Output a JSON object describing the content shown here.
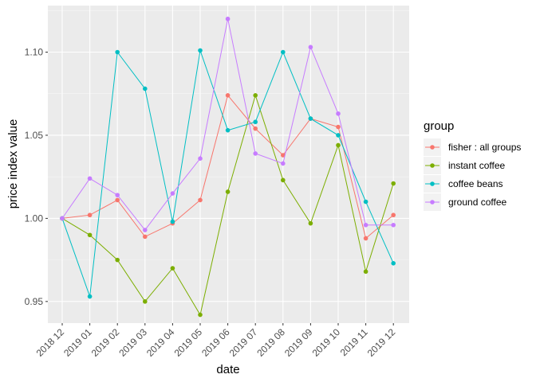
{
  "chart_data": {
    "type": "line",
    "xlabel": "date",
    "ylabel": "price index value",
    "x": [
      "2018 12",
      "2019 01",
      "2019 02",
      "2019 03",
      "2019 04",
      "2019 05",
      "2019 06",
      "2019 07",
      "2019 08",
      "2019 09",
      "2019 10",
      "2019 11",
      "2019 12"
    ],
    "yticks": [
      "0.95",
      "1.00",
      "1.05",
      "1.10"
    ],
    "ylim": [
      0.937,
      1.128
    ],
    "grid": true,
    "legend": {
      "title": "group",
      "position": "right"
    },
    "series": [
      {
        "name": "fisher : all groups",
        "color": "#F8766D",
        "values": [
          1.0,
          1.002,
          1.011,
          0.989,
          0.997,
          1.011,
          1.074,
          1.054,
          1.038,
          1.06,
          1.055,
          0.988,
          1.002
        ]
      },
      {
        "name": "instant coffee",
        "color": "#7CAE00",
        "values": [
          1.0,
          0.99,
          0.975,
          0.95,
          0.97,
          0.942,
          1.016,
          1.074,
          1.023,
          0.997,
          1.044,
          0.968,
          1.021
        ]
      },
      {
        "name": "coffee beans",
        "color": "#00BFC4",
        "values": [
          1.0,
          0.953,
          1.1,
          1.078,
          0.998,
          1.101,
          1.053,
          1.058,
          1.1,
          1.06,
          1.05,
          1.01,
          0.973
        ]
      },
      {
        "name": "ground coffee",
        "color": "#C77CFF",
        "values": [
          1.0,
          1.024,
          1.014,
          0.993,
          1.015,
          1.036,
          1.12,
          1.039,
          1.033,
          1.103,
          1.063,
          0.996,
          0.996
        ]
      }
    ]
  }
}
